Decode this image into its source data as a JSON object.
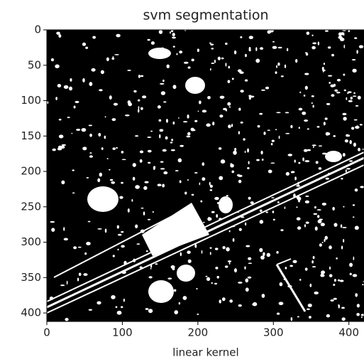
{
  "chart_data": {
    "type": "image",
    "title": "svm segmentation",
    "x_label": "linear kernel",
    "xlim": [
      0,
      420
    ],
    "ylim": [
      412,
      0
    ],
    "xticks": [
      0,
      100,
      200,
      300,
      400
    ],
    "yticks": [
      0,
      50,
      100,
      150,
      200,
      250,
      300,
      350,
      400
    ]
  }
}
